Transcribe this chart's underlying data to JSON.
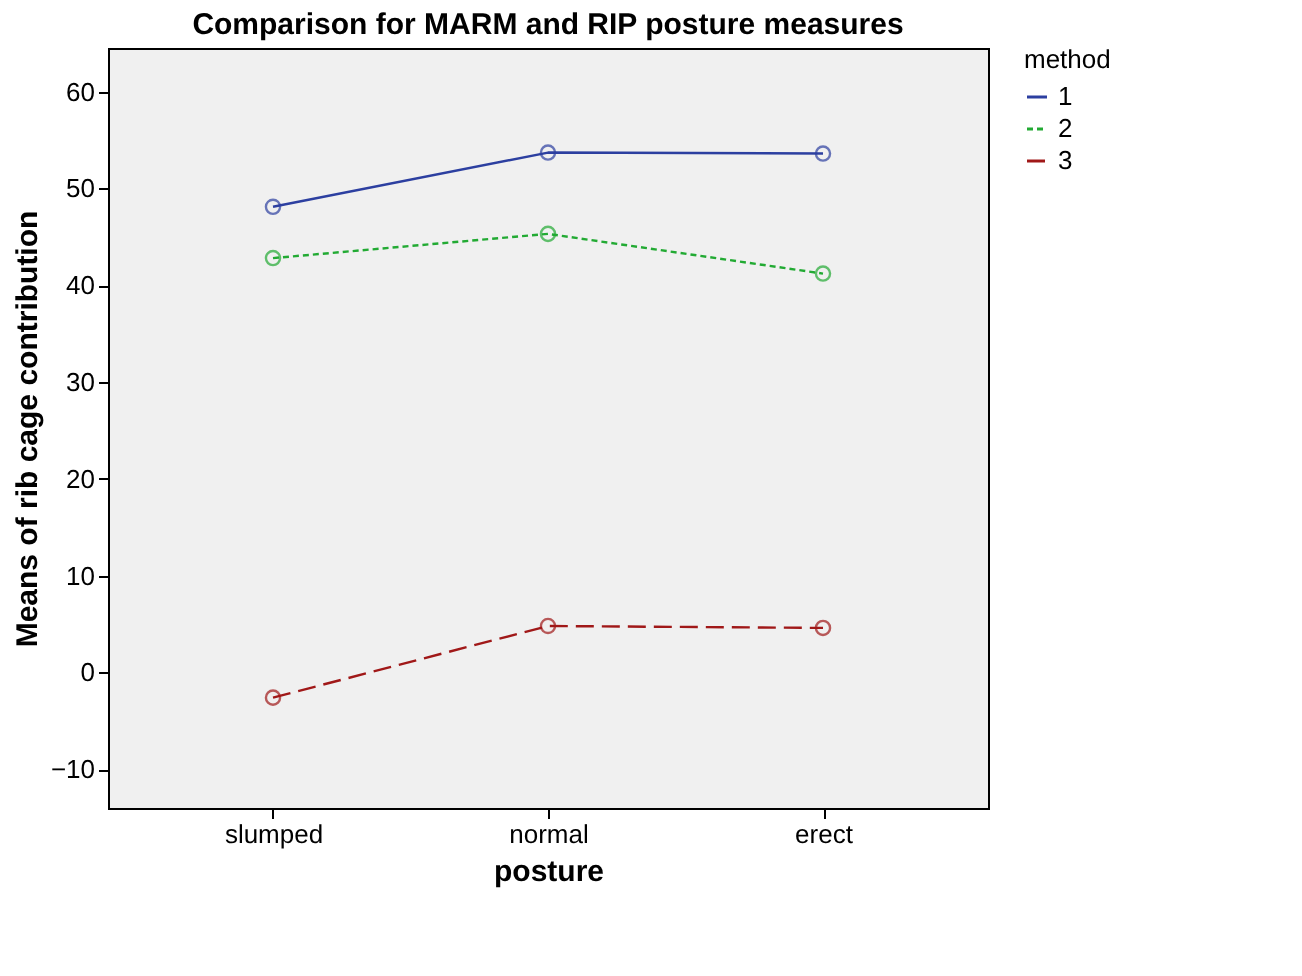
{
  "chart_data": {
    "type": "line",
    "title": "Comparison for MARM and RIP posture measures",
    "xlabel": "posture",
    "ylabel": "Means of rib cage contribution",
    "legend_title": "method",
    "legend": "right",
    "marker": "circle",
    "grid": false,
    "categories": [
      "slumped",
      "normal",
      "erect"
    ],
    "ylim": [
      -14,
      64.5
    ],
    "yticks": [
      -10,
      0,
      10,
      20,
      30,
      40,
      50,
      60
    ],
    "series": [
      {
        "name": "1",
        "color": "#2c3fa0",
        "line_style": "solid",
        "values": [
          48.1,
          53.7,
          53.6
        ]
      },
      {
        "name": "2",
        "color": "#22aa33",
        "line_style": "dashed",
        "values": [
          42.8,
          45.3,
          41.2
        ]
      },
      {
        "name": "3",
        "color": "#a01818",
        "line_style": "longdash",
        "values": [
          -2.6,
          4.8,
          4.6
        ]
      }
    ]
  }
}
